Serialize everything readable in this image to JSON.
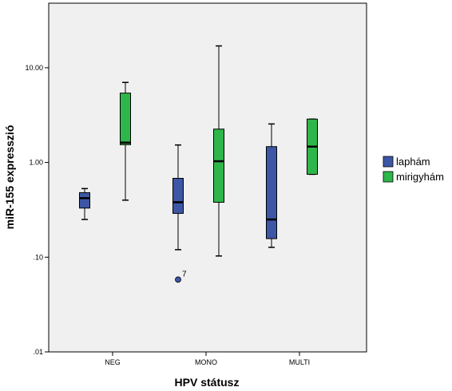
{
  "chart_data": {
    "type": "boxplot",
    "title": "",
    "xlabel": "HPV státusz",
    "ylabel": "miR-155 expresszió",
    "y_scale": "log",
    "ylim": [
      0.01,
      50
    ],
    "y_ticks": [
      {
        "value": 0.01,
        "label": ".01"
      },
      {
        "value": 0.1,
        "label": ".10"
      },
      {
        "value": 1,
        "label": "1.00"
      },
      {
        "value": 10,
        "label": "10.00"
      }
    ],
    "categories": [
      "NEG",
      "MONO",
      "MULTI"
    ],
    "legend_position": "right",
    "grid": false,
    "colors": {
      "background": "#f0f0f0",
      "laphám": "#3d57a6",
      "mirigyhám": "#2fb64a"
    },
    "series": [
      {
        "name": "laphám",
        "boxes": [
          {
            "category": "NEG",
            "whisker_low": 0.25,
            "q1": 0.33,
            "median": 0.42,
            "q3": 0.48,
            "whisker_high": 0.53
          },
          {
            "category": "MONO",
            "whisker_low": 0.12,
            "q1": 0.29,
            "median": 0.38,
            "q3": 0.68,
            "whisker_high": 1.53
          },
          {
            "category": "MULTI",
            "whisker_low": 0.127,
            "q1": 0.157,
            "median": 0.25,
            "q3": 1.47,
            "whisker_high": 2.55
          }
        ]
      },
      {
        "name": "mirigyhám",
        "boxes": [
          {
            "category": "NEG",
            "whisker_low": 0.4,
            "q1": 1.54,
            "median": 1.62,
            "q3": 5.4,
            "whisker_high": 7.0
          },
          {
            "category": "MONO",
            "whisker_low": 0.103,
            "q1": 0.38,
            "median": 1.03,
            "q3": 2.25,
            "whisker_high": 17.0
          },
          {
            "category": "MULTI",
            "whisker_low": 0.75,
            "q1": 0.75,
            "median": 1.47,
            "q3": 2.87,
            "whisker_high": 2.87
          }
        ]
      }
    ],
    "outliers": [
      {
        "series": "laphám",
        "category": "MONO",
        "value": 0.058,
        "label": "7"
      }
    ]
  }
}
